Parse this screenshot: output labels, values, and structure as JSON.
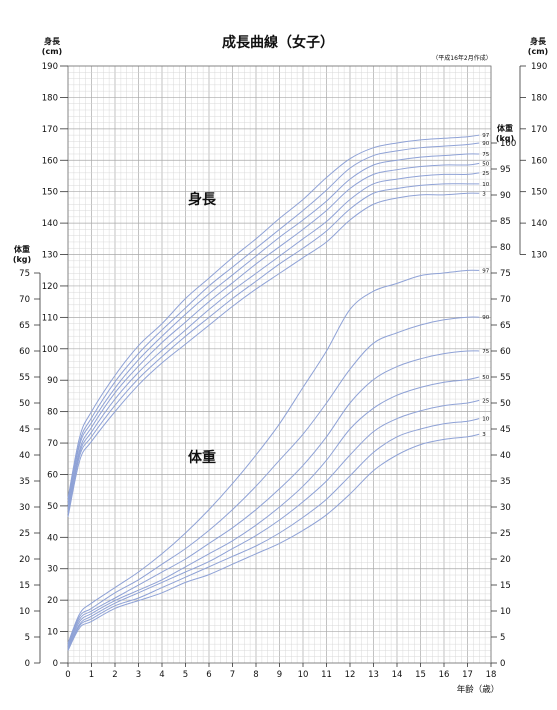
{
  "chart_data": {
    "type": "line",
    "title": "成長曲線（女子）",
    "subtitle": "（平成16年2月作成）",
    "colors": {
      "curve": "#8fa2d6",
      "grid_minor": "#d6d6d6",
      "grid_major": "#a9a9a9"
    },
    "grid": true,
    "x": {
      "label": "年齢（歳）",
      "range": [
        0,
        18
      ],
      "ticks": [
        "0",
        "1",
        "2",
        "3",
        "4",
        "5",
        "6",
        "7",
        "8",
        "9",
        "10",
        "11",
        "12",
        "13",
        "14",
        "15",
        "16",
        "17",
        "18"
      ]
    },
    "height_axis": {
      "label_top": "身長",
      "label_unit": "(cm)",
      "range": [
        0,
        190
      ],
      "left_ticks": [
        "190",
        "180",
        "170",
        "160",
        "150",
        "140",
        "130",
        "120",
        "110",
        "100",
        "90",
        "80",
        "70",
        "60",
        "50",
        "40",
        "30",
        "20",
        "10",
        "0"
      ],
      "right_ticks": [
        "190",
        "180",
        "170",
        "160",
        "150",
        "140",
        "130"
      ]
    },
    "weight_axis": {
      "label_top": "体重",
      "label_unit": "(kg)",
      "range": [
        0,
        100
      ],
      "left_ticks": [
        "75",
        "70",
        "65",
        "60",
        "55",
        "50",
        "45",
        "40",
        "35",
        "30",
        "25",
        "20",
        "15",
        "10",
        "5",
        "0"
      ],
      "right_ticks": [
        "100",
        "95",
        "90",
        "85",
        "80",
        "75",
        "70",
        "65",
        "60",
        "55",
        "50",
        "45",
        "40",
        "35",
        "30",
        "25",
        "20",
        "15",
        "10",
        "5",
        "0"
      ]
    },
    "region_labels": {
      "height": "身長",
      "weight": "体重"
    },
    "height_series": [
      {
        "name": "97",
        "x": [
          0,
          0.5,
          1,
          2,
          3,
          4,
          5,
          6,
          7,
          8,
          9,
          10,
          11,
          12,
          13,
          14,
          15,
          16,
          17,
          17.5
        ],
        "values": [
          52.5,
          72,
          80,
          91.5,
          101,
          108,
          116,
          122.5,
          129,
          135,
          141.5,
          147.5,
          154.5,
          160.5,
          164,
          165.5,
          166.5,
          167,
          167.5,
          168
        ]
      },
      {
        "name": "90",
        "x": [
          0,
          0.5,
          1,
          2,
          3,
          4,
          5,
          6,
          7,
          8,
          9,
          10,
          11,
          12,
          13,
          14,
          15,
          16,
          17,
          17.5
        ],
        "values": [
          51.5,
          70.5,
          78,
          89.5,
          98.5,
          106,
          113,
          120,
          126,
          132,
          138,
          144,
          150.5,
          157.5,
          161.5,
          163,
          164,
          164.5,
          165,
          165.5
        ]
      },
      {
        "name": "75",
        "x": [
          0,
          0.5,
          1,
          2,
          3,
          4,
          5,
          6,
          7,
          8,
          9,
          10,
          11,
          12,
          13,
          14,
          15,
          16,
          17,
          17.5
        ],
        "values": [
          50.5,
          69.5,
          76.5,
          87.5,
          96.5,
          104,
          111,
          117.5,
          123.5,
          129.5,
          135.5,
          141,
          147,
          154,
          158.5,
          160,
          161,
          161.5,
          162,
          162
        ]
      },
      {
        "name": "50",
        "x": [
          0,
          0.5,
          1,
          2,
          3,
          4,
          5,
          6,
          7,
          8,
          9,
          10,
          11,
          12,
          13,
          14,
          15,
          16,
          17,
          17.5
        ],
        "values": [
          49.5,
          68,
          75,
          86,
          94.5,
          102,
          108.5,
          115,
          121,
          127,
          132.5,
          138,
          144,
          151,
          155.5,
          157,
          158,
          158.5,
          158.5,
          159
        ]
      },
      {
        "name": "25",
        "x": [
          0,
          0.5,
          1,
          2,
          3,
          4,
          5,
          6,
          7,
          8,
          9,
          10,
          11,
          12,
          13,
          14,
          15,
          16,
          17,
          17.5
        ],
        "values": [
          48.5,
          67,
          73.5,
          84,
          92.5,
          99.5,
          106,
          112.5,
          118.5,
          124,
          129.5,
          135,
          140.5,
          147.5,
          152.5,
          154,
          155,
          155.5,
          155.5,
          156
        ]
      },
      {
        "name": "10",
        "x": [
          0,
          0.5,
          1,
          2,
          3,
          4,
          5,
          6,
          7,
          8,
          9,
          10,
          11,
          12,
          13,
          14,
          15,
          16,
          17,
          17.5
        ],
        "values": [
          47.5,
          66,
          72,
          82,
          90.5,
          97.5,
          104,
          110,
          116,
          121.5,
          127,
          132,
          137.5,
          144.5,
          149.5,
          151,
          152,
          152.5,
          152.5,
          152.5
        ]
      },
      {
        "name": "3",
        "x": [
          0,
          0.5,
          1,
          2,
          3,
          4,
          5,
          6,
          7,
          8,
          9,
          10,
          11,
          12,
          13,
          14,
          15,
          16,
          17,
          17.5
        ],
        "values": [
          46.5,
          64.5,
          70.5,
          80,
          88.5,
          95.5,
          101.5,
          107.5,
          113.5,
          119,
          124,
          129,
          134,
          141,
          146,
          148,
          149,
          149,
          149.5,
          149.5
        ]
      }
    ],
    "weight_series": [
      {
        "name": "97",
        "x": [
          0,
          0.5,
          1,
          2,
          3,
          4,
          5,
          6,
          7,
          8,
          9,
          10,
          11,
          12,
          13,
          14,
          15,
          16,
          17,
          17.5
        ],
        "values": [
          3.8,
          9.5,
          11.5,
          14.5,
          17.5,
          21,
          25,
          29.5,
          34.5,
          40,
          46,
          53,
          60,
          68,
          71.5,
          73,
          74.5,
          75,
          75.5,
          75.5
        ]
      },
      {
        "name": "90",
        "x": [
          0,
          0.5,
          1,
          2,
          3,
          4,
          5,
          6,
          7,
          8,
          9,
          10,
          11,
          12,
          13,
          14,
          15,
          16,
          17,
          17.5
        ],
        "values": [
          3.5,
          9,
          10.5,
          13.5,
          16,
          19,
          22,
          25.5,
          29.5,
          34,
          39,
          44,
          50,
          56.5,
          61.5,
          63.5,
          65,
          66,
          66.5,
          66.5
        ]
      },
      {
        "name": "75",
        "x": [
          0,
          0.5,
          1,
          2,
          3,
          4,
          5,
          6,
          7,
          8,
          9,
          10,
          11,
          12,
          13,
          14,
          15,
          16,
          17,
          17.5
        ],
        "values": [
          3.3,
          8.5,
          10,
          12.5,
          15,
          17.5,
          20,
          23,
          26,
          29.5,
          33.5,
          38,
          43.5,
          50,
          54.5,
          57,
          58.5,
          59.5,
          60,
          60
        ]
      },
      {
        "name": "50",
        "x": [
          0,
          0.5,
          1,
          2,
          3,
          4,
          5,
          6,
          7,
          8,
          9,
          10,
          11,
          12,
          13,
          14,
          15,
          16,
          17,
          17.5
        ],
        "values": [
          3,
          8,
          9.5,
          12,
          14,
          16,
          18.5,
          21,
          23.5,
          26.5,
          30,
          34,
          39,
          45,
          49,
          51.5,
          53,
          54,
          54.5,
          55
        ]
      },
      {
        "name": "25",
        "x": [
          0,
          0.5,
          1,
          2,
          3,
          4,
          5,
          6,
          7,
          8,
          9,
          10,
          11,
          12,
          13,
          14,
          15,
          16,
          17,
          17.5
        ],
        "values": [
          2.8,
          7.5,
          9,
          11.5,
          13.5,
          15.5,
          17.5,
          19.5,
          22,
          24.5,
          27.5,
          31,
          35,
          40,
          44.5,
          47,
          48.5,
          49.5,
          50,
          50.5
        ]
      },
      {
        "name": "10",
        "x": [
          0,
          0.5,
          1,
          2,
          3,
          4,
          5,
          6,
          7,
          8,
          9,
          10,
          11,
          12,
          13,
          14,
          15,
          16,
          17,
          17.5
        ],
        "values": [
          2.6,
          7.2,
          8.5,
          11,
          12.5,
          14.5,
          16.5,
          18.5,
          20.5,
          22.5,
          25,
          28,
          31.5,
          36,
          40.5,
          43.5,
          45,
          46,
          46.5,
          47
        ]
      },
      {
        "name": "3",
        "x": [
          0,
          0.5,
          1,
          2,
          3,
          4,
          5,
          6,
          7,
          8,
          9,
          10,
          11,
          12,
          13,
          14,
          15,
          16,
          17,
          17.5
        ],
        "values": [
          2.4,
          6.8,
          8,
          10.5,
          12,
          13.5,
          15.5,
          17,
          19,
          21,
          23,
          25.5,
          28.5,
          32.5,
          37,
          40,
          42,
          43,
          43.5,
          44
        ]
      }
    ]
  }
}
